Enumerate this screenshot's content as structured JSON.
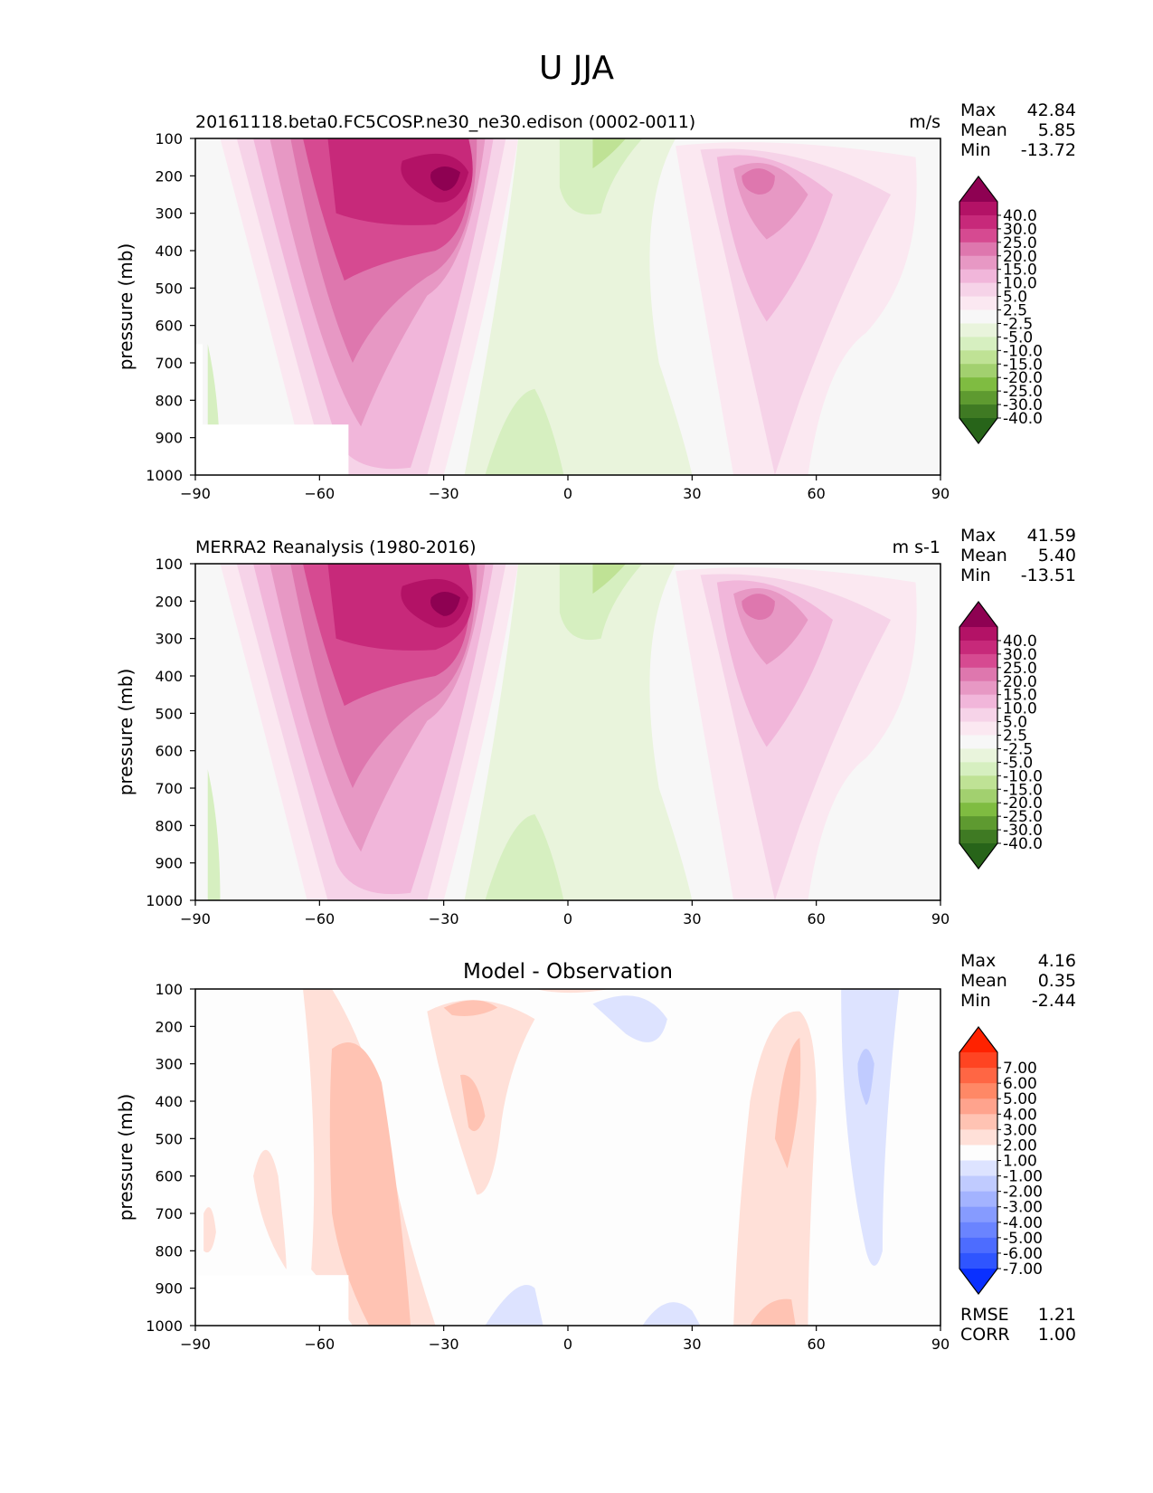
{
  "figure_title": "U JJA",
  "panels": [
    {
      "title": "20161118.beta0.FC5COSP.ne30_ne30.edison (0002-0011)",
      "title_position": "left",
      "units": "m/s",
      "ylabel": "pressure (mb)",
      "stats": [
        {
          "label": "Max",
          "value": "42.84"
        },
        {
          "label": "Mean",
          "value": "5.85"
        },
        {
          "label": "Min",
          "value": "-13.72"
        }
      ],
      "colorbar_labels": [
        "40.0",
        "30.0",
        "25.0",
        "20.0",
        "15.0",
        "10.0",
        "5.0",
        "2.5",
        "-2.5",
        "-5.0",
        "-10.0",
        "-15.0",
        "-20.0",
        "-25.0",
        "-30.0",
        "-40.0"
      ],
      "colorbar_colors": [
        "#8e0152",
        "#b31266",
        "#c7297a",
        "#d64a91",
        "#de77ae",
        "#e798c4",
        "#f1b6da",
        "#f6d3e8",
        "#fbe8f1",
        "#f7f7f7",
        "#e9f4dc",
        "#d6efc0",
        "#bfe295",
        "#a2d06f",
        "#7fbc41",
        "#5e9a30",
        "#3f7a23",
        "#276419"
      ],
      "bottom_stats": []
    },
    {
      "title": "MERRA2 Reanalysis (1980-2016)",
      "title_position": "left",
      "units": "m s-1",
      "ylabel": "pressure (mb)",
      "stats": [
        {
          "label": "Max",
          "value": "41.59"
        },
        {
          "label": "Mean",
          "value": "5.40"
        },
        {
          "label": "Min",
          "value": "-13.51"
        }
      ],
      "colorbar_labels": [
        "40.0",
        "30.0",
        "25.0",
        "20.0",
        "15.0",
        "10.0",
        "5.0",
        "2.5",
        "-2.5",
        "-5.0",
        "-10.0",
        "-15.0",
        "-20.0",
        "-25.0",
        "-30.0",
        "-40.0"
      ],
      "colorbar_colors": [
        "#8e0152",
        "#b31266",
        "#c7297a",
        "#d64a91",
        "#de77ae",
        "#e798c4",
        "#f1b6da",
        "#f6d3e8",
        "#fbe8f1",
        "#f7f7f7",
        "#e9f4dc",
        "#d6efc0",
        "#bfe295",
        "#a2d06f",
        "#7fbc41",
        "#5e9a30",
        "#3f7a23",
        "#276419"
      ],
      "bottom_stats": []
    },
    {
      "title": "Model - Observation",
      "title_position": "center",
      "units": "",
      "ylabel": "pressure (mb)",
      "stats": [
        {
          "label": "Max",
          "value": "4.16"
        },
        {
          "label": "Mean",
          "value": "0.35"
        },
        {
          "label": "Min",
          "value": "-2.44"
        }
      ],
      "colorbar_labels": [
        "7.00",
        "6.00",
        "5.00",
        "4.00",
        "3.00",
        "2.00",
        "1.00",
        "-1.00",
        "-2.00",
        "-3.00",
        "-4.00",
        "-5.00",
        "-6.00",
        "-7.00"
      ],
      "colorbar_colors": [
        "#ff2200",
        "#ff4422",
        "#ff6644",
        "#ff8866",
        "#ffa38d",
        "#ffc3b3",
        "#ffe0d8",
        "#fdfdfd",
        "#dde3ff",
        "#c0cbff",
        "#a3b3ff",
        "#869bff",
        "#6a84ff",
        "#4d6cff",
        "#2f55ff",
        "#0a30ff"
      ],
      "bottom_stats": [
        {
          "label": "RMSE",
          "value": "1.21"
        },
        {
          "label": "CORR",
          "value": "1.00"
        }
      ]
    }
  ],
  "chart_data": [
    {
      "type": "heatmap",
      "title": "20161118.beta0.FC5COSP.ne30_ne30.edison (0002-0011)",
      "xlabel": "",
      "ylabel": "pressure (mb)",
      "units": "m/s",
      "x_ticks": [
        -90,
        -60,
        -30,
        0,
        30,
        60,
        90
      ],
      "y_ticks": [
        100,
        200,
        300,
        400,
        500,
        600,
        700,
        800,
        900,
        1000
      ],
      "xlim": [
        -90,
        90
      ],
      "ylim": [
        1000,
        100
      ],
      "levels": [
        -40,
        -30,
        -25,
        -20,
        -15,
        -10,
        -5,
        -2.5,
        2.5,
        5,
        10,
        15,
        20,
        25,
        30,
        40
      ],
      "max": 42.84,
      "mean": 5.85,
      "min": -13.72,
      "features": [
        {
          "lat": -28,
          "p": 200,
          "value": 40
        },
        {
          "lat": 45,
          "p": 210,
          "value": 20
        },
        {
          "lat": 10,
          "p": 150,
          "value": -10
        },
        {
          "lat": -10,
          "p": 850,
          "value": -5
        }
      ]
    },
    {
      "type": "heatmap",
      "title": "MERRA2 Reanalysis (1980-2016)",
      "xlabel": "",
      "ylabel": "pressure (mb)",
      "units": "m s-1",
      "x_ticks": [
        -90,
        -60,
        -30,
        0,
        30,
        60,
        90
      ],
      "y_ticks": [
        100,
        200,
        300,
        400,
        500,
        600,
        700,
        800,
        900,
        1000
      ],
      "xlim": [
        -90,
        90
      ],
      "ylim": [
        1000,
        100
      ],
      "levels": [
        -40,
        -30,
        -25,
        -20,
        -15,
        -10,
        -5,
        -2.5,
        2.5,
        5,
        10,
        15,
        20,
        25,
        30,
        40
      ],
      "max": 41.59,
      "mean": 5.4,
      "min": -13.51,
      "features": [
        {
          "lat": -30,
          "p": 200,
          "value": 40
        },
        {
          "lat": 44,
          "p": 200,
          "value": 20
        },
        {
          "lat": 10,
          "p": 150,
          "value": -10
        },
        {
          "lat": -10,
          "p": 870,
          "value": -5
        }
      ]
    },
    {
      "type": "heatmap",
      "title": "Model - Observation",
      "xlabel": "",
      "ylabel": "pressure (mb)",
      "units": "",
      "x_ticks": [
        -90,
        -60,
        -30,
        0,
        30,
        60,
        90
      ],
      "y_ticks": [
        100,
        200,
        300,
        400,
        500,
        600,
        700,
        800,
        900,
        1000
      ],
      "xlim": [
        -90,
        90
      ],
      "ylim": [
        1000,
        100
      ],
      "levels": [
        -7,
        -6,
        -5,
        -4,
        -3,
        -2,
        -1,
        1,
        2,
        3,
        4,
        5,
        6,
        7
      ],
      "max": 4.16,
      "mean": 0.35,
      "min": -2.44,
      "rmse": 1.21,
      "corr": 1.0,
      "features": [
        {
          "lat": -48,
          "p": 500,
          "value": 3
        },
        {
          "lat": 53,
          "p": 400,
          "value": 3
        },
        {
          "lat": 72,
          "p": 300,
          "value": -2
        },
        {
          "lat": 15,
          "p": 200,
          "value": -1
        }
      ]
    }
  ]
}
